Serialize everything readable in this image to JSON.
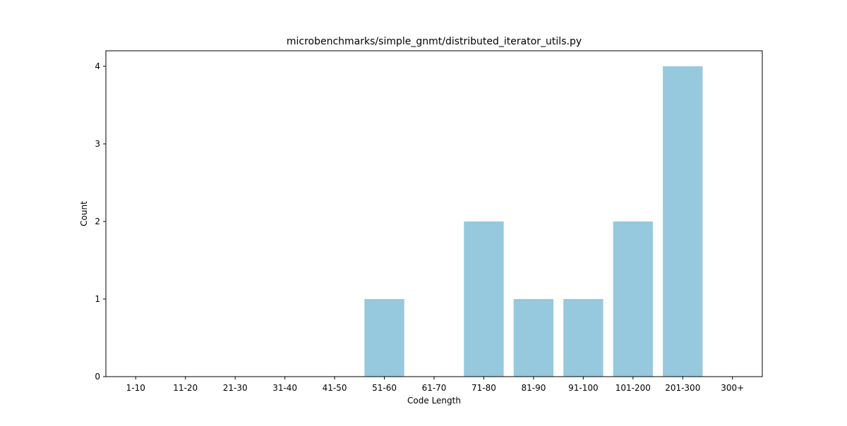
{
  "chart_data": {
    "type": "bar",
    "title": "microbenchmarks/simple_gnmt/distributed_iterator_utils.py",
    "xlabel": "Code Length",
    "ylabel": "Count",
    "categories": [
      "1-10",
      "11-20",
      "21-30",
      "31-40",
      "41-50",
      "51-60",
      "61-70",
      "71-80",
      "81-90",
      "91-100",
      "101-200",
      "201-300",
      "300+"
    ],
    "values": [
      0,
      0,
      0,
      0,
      0,
      1,
      0,
      2,
      1,
      1,
      2,
      4,
      0
    ],
    "ylim": [
      0,
      4.2
    ],
    "yticks": [
      0,
      1,
      2,
      3,
      4
    ],
    "bar_color": "#96c9dd",
    "grid": false,
    "legend": "none"
  }
}
